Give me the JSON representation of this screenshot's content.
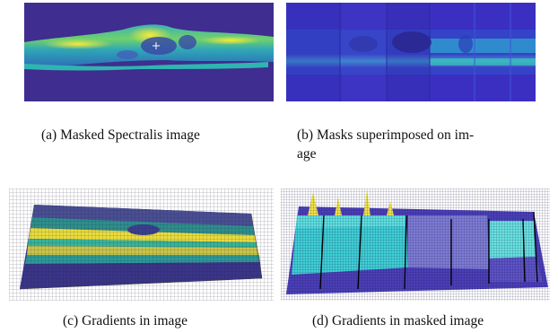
{
  "figure": {
    "subfigures": [
      {
        "id": "a",
        "caption": "(a) Masked Spectralis image"
      },
      {
        "id": "b",
        "caption_line1": "(b) Masks superimposed on im-",
        "caption_line2": "age"
      },
      {
        "id": "c",
        "caption": "(c) Gradients in image"
      },
      {
        "id": "d",
        "caption": "(d) Gradients in masked image"
      }
    ]
  },
  "colors": {
    "background_dark": "#3f2d8f",
    "yellow": "#f4e23a",
    "teal": "#2ab9a2",
    "cyan": "#3ad3db",
    "blue": "#3b5fd0",
    "lavender": "#7f7fd3"
  }
}
